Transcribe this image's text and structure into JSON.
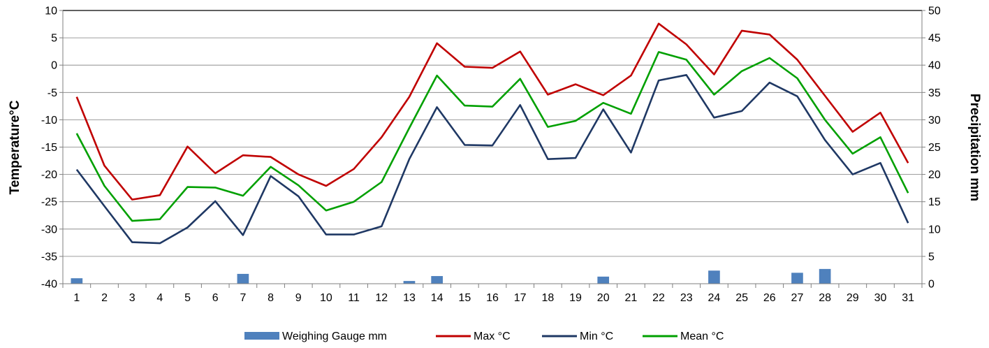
{
  "chart_data": {
    "type": "line",
    "title": "",
    "xlabel": "",
    "ylabel": "Temperature°C",
    "y2label": "Precipitation mm",
    "ylim": [
      -40,
      10
    ],
    "y2lim": [
      0,
      50
    ],
    "yticks": [
      "10",
      "5",
      "0",
      "-5",
      "-10",
      "-15",
      "-20",
      "-25",
      "-30",
      "-35",
      "-40"
    ],
    "y2ticks": [
      "50",
      "45",
      "40",
      "35",
      "30",
      "25",
      "20",
      "15",
      "10",
      "5",
      "0"
    ],
    "grid": true,
    "legend_position": "bottom",
    "categories": [
      "1",
      "2",
      "3",
      "4",
      "5",
      "6",
      "7",
      "8",
      "9",
      "10",
      "11",
      "12",
      "13",
      "14",
      "15",
      "16",
      "17",
      "18",
      "19",
      "20",
      "21",
      "22",
      "23",
      "24",
      "25",
      "26",
      "27",
      "28",
      "29",
      "30",
      "31"
    ],
    "bars": {
      "name": "Weighing Gauge mm",
      "axis": "right",
      "color": "#4f81bd",
      "values": [
        1.0,
        0,
        0,
        0,
        0,
        0,
        1.8,
        0,
        0,
        0,
        0,
        0,
        0.5,
        1.4,
        0,
        0,
        0,
        0,
        0,
        1.3,
        0,
        0,
        0,
        2.4,
        0,
        0,
        2.0,
        2.7,
        0,
        0,
        0
      ]
    },
    "series": [
      {
        "name": "Max °C",
        "color": "#c00000",
        "values": [
          -5.8,
          -18.4,
          -24.6,
          -23.8,
          -14.9,
          -19.8,
          -16.5,
          -16.8,
          -20.0,
          -22.1,
          -19.0,
          -13.2,
          -5.8,
          4.0,
          -0.3,
          -0.5,
          2.5,
          -5.4,
          -3.5,
          -5.5,
          -1.9,
          7.6,
          3.8,
          -1.7,
          6.3,
          5.6,
          1.0,
          -5.6,
          -12.2,
          -8.7,
          -17.9
        ]
      },
      {
        "name": "Min °C",
        "color": "#1f3864",
        "values": [
          -19.1,
          -25.8,
          -32.4,
          -32.6,
          -29.7,
          -24.9,
          -31.1,
          -20.3,
          -24.0,
          -31.0,
          -31.0,
          -29.5,
          -17.2,
          -7.7,
          -14.6,
          -14.7,
          -7.3,
          -17.2,
          -17.0,
          -8.1,
          -16.0,
          -2.8,
          -1.8,
          -9.6,
          -8.4,
          -3.2,
          -5.7,
          -13.7,
          -20.0,
          -17.9,
          -28.9
        ]
      },
      {
        "name": "Mean °C",
        "color": "#00a000",
        "values": [
          -12.5,
          -22.1,
          -28.5,
          -28.2,
          -22.3,
          -22.4,
          -23.9,
          -18.6,
          -22.0,
          -26.6,
          -25.0,
          -21.4,
          -11.5,
          -1.9,
          -7.4,
          -7.6,
          -2.5,
          -11.3,
          -10.2,
          -6.9,
          -8.9,
          2.4,
          1.0,
          -5.4,
          -1.1,
          1.3,
          -2.4,
          -10.0,
          -16.2,
          -13.2,
          -23.4
        ]
      }
    ]
  }
}
